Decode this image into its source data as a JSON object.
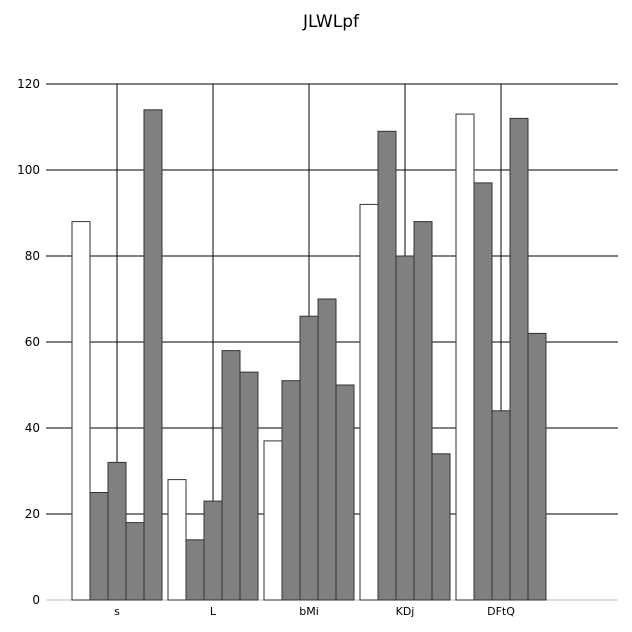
{
  "chart_data": {
    "type": "bar",
    "title": "JLWLpf",
    "xlabel": "",
    "ylabel": "",
    "categories": [
      "s",
      "L",
      "bMi",
      "KDj",
      "DFtQ"
    ],
    "ylim": [
      0,
      120
    ],
    "yticks": [
      0,
      20,
      40,
      60,
      80,
      100,
      120
    ],
    "grid": true,
    "legend": "none",
    "series": [
      {
        "color": "#ffffff",
        "values": [
          88,
          28,
          37,
          92,
          113
        ]
      },
      {
        "color": "#808080",
        "values": [
          25,
          14,
          51,
          109,
          97
        ]
      },
      {
        "color": "#808080",
        "values": [
          32,
          23,
          66,
          80,
          44
        ]
      },
      {
        "color": "#808080",
        "values": [
          18,
          58,
          70,
          88,
          112
        ]
      },
      {
        "color": "#808080",
        "values": [
          114,
          53,
          50,
          34,
          62
        ]
      }
    ]
  }
}
